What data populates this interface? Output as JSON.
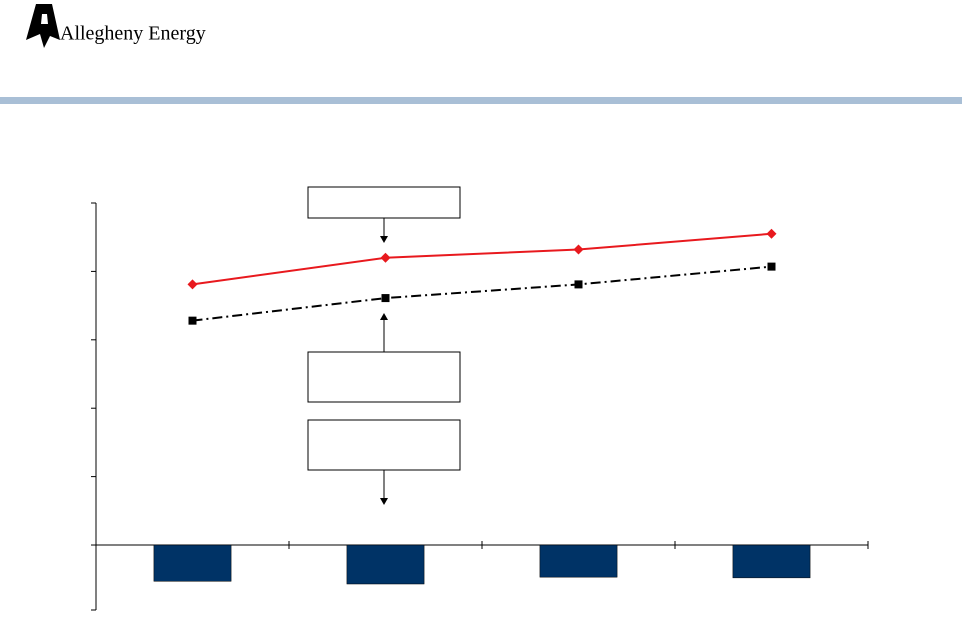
{
  "logo": {
    "text": "Allegheny Energy"
  },
  "chart_data": {
    "type": "bar",
    "categories": [
      null,
      null,
      null,
      null
    ],
    "values": [
      -0.53,
      -0.57,
      -0.47,
      -0.48
    ],
    "color": "#003366",
    "lines": [
      {
        "color": "#e8191e",
        "marker": "diamond",
        "dash": "solid",
        "values": [
          3.81,
          4.2,
          4.32,
          4.55
        ]
      },
      {
        "color": "#000000",
        "marker": "square",
        "dash": "dash-dot",
        "values": [
          3.28,
          3.61,
          3.81,
          4.07
        ]
      }
    ],
    "ylim": [
      -0.95,
      5
    ],
    "yticks": [
      -0.95,
      0,
      1,
      2,
      3,
      4,
      5
    ]
  }
}
